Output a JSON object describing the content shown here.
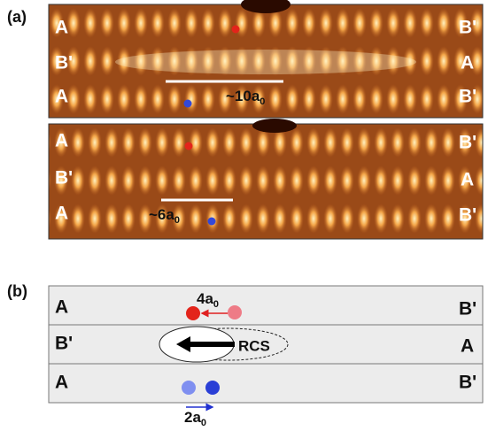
{
  "figure": {
    "panel_a": {
      "label": "(a)",
      "images": [
        {
          "left_labels": [
            "A",
            "B'",
            "A"
          ],
          "right_labels": [
            "B'",
            "A",
            "B'"
          ],
          "scale": {
            "text": "~10a",
            "subscript": "0"
          }
        },
        {
          "left_labels": [
            "A",
            "B'",
            "A"
          ],
          "right_labels": [
            "B'",
            "A",
            "B'"
          ],
          "scale": {
            "text": "~6a",
            "subscript": "0"
          }
        }
      ]
    },
    "panel_b": {
      "label": "(b)",
      "left_labels": [
        "A",
        "B'",
        "A"
      ],
      "right_labels": [
        "B'",
        "A",
        "B'"
      ],
      "top_shift": {
        "text": "4a",
        "subscript": "0"
      },
      "bottom_shift": {
        "text": "2a",
        "subscript": "0"
      },
      "core_label": "RCS"
    }
  }
}
